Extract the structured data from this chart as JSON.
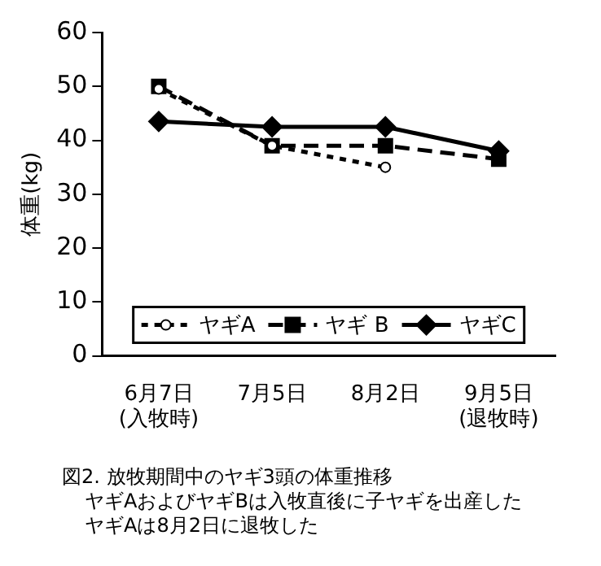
{
  "chart_data": {
    "type": "line",
    "title": "図2. 放牧期間中のヤギ3頭の体重推移",
    "ylabel": "体重(kg)",
    "annotations": [
      "ヤギAおよびヤギBは入牧直後に子ヤギを出産した",
      "ヤギAは8月2日に退牧した"
    ],
    "categories": [
      "6月7日\n(入牧時)",
      "7月5日",
      "8月2日",
      "9月5日\n(退牧時)"
    ],
    "series": [
      {
        "name": "ヤギA",
        "color": "#000000",
        "values": [
          49.5,
          39,
          35,
          null
        ],
        "marker": "circle",
        "line_style": "dotted"
      },
      {
        "name": "ヤギ B",
        "color": "#000000",
        "values": [
          50,
          39,
          39,
          36.5
        ],
        "marker": "square",
        "line_style": "dashed"
      },
      {
        "name": "ヤギC",
        "color": "#000000",
        "values": [
          43.5,
          42.5,
          42.5,
          38
        ],
        "marker": "diamond",
        "line_style": "solid"
      }
    ],
    "ylim": [
      0,
      60
    ],
    "yticks": [
      0,
      10,
      20,
      30,
      40,
      50,
      60
    ],
    "grid": false,
    "legend": "bottom"
  }
}
